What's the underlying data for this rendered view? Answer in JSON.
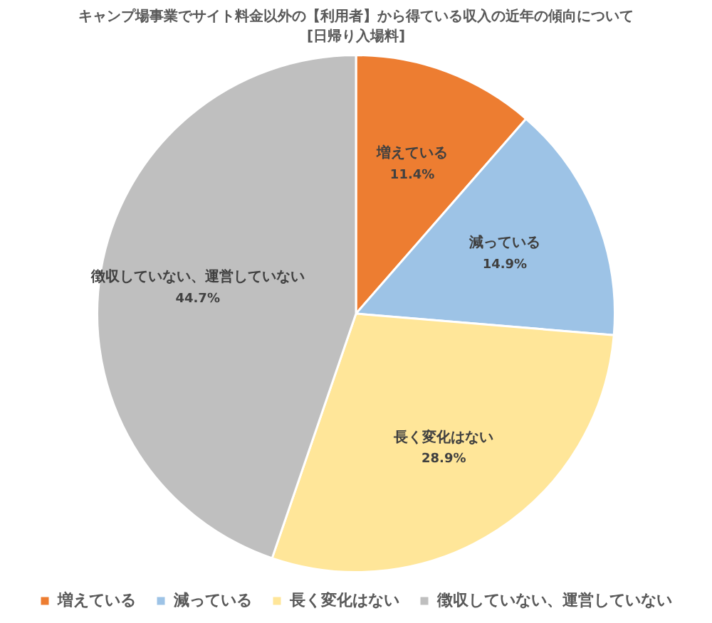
{
  "chart_data": {
    "type": "pie",
    "title": "キャンプ場事業でサイト料金以外の【利用者】から得ている収入の近年の傾向について",
    "subtitle": "[日帰り入場料]",
    "categories": [
      "増えている",
      "減っている",
      "長く変化はない",
      "徴収していない、運営していない"
    ],
    "values": [
      11.4,
      14.9,
      28.9,
      44.7
    ],
    "colors": [
      "#ed7d31",
      "#9dc3e6",
      "#ffe699",
      "#bfbfbf"
    ],
    "value_labels": [
      "11.4%",
      "14.9%",
      "28.9%",
      "44.7%"
    ],
    "legend": "bottom"
  }
}
